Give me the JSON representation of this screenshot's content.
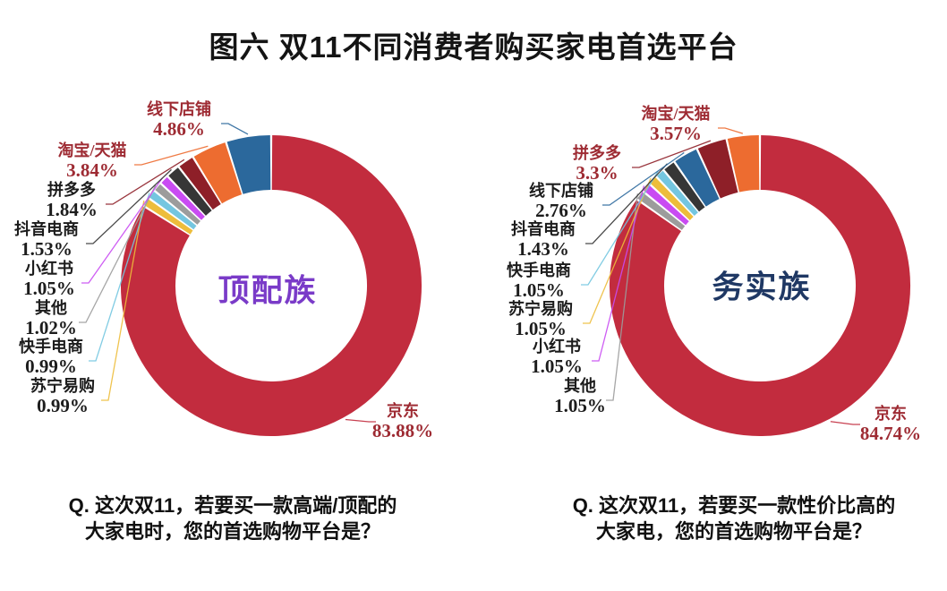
{
  "title": "图六 双11不同消费者购买家电首选平台",
  "chart_data": [
    {
      "type": "pie",
      "subtype": "donut",
      "center_label": "顶配族",
      "center_label_color": "#7A3BC8",
      "question": [
        "Q. 这次双11，若要买一款高端/顶配的",
        "大家电时，您的首选购物平台是？"
      ],
      "unit": "%",
      "legend_position": "outside-callout",
      "slices": [
        {
          "name": "京东",
          "value": 83.88,
          "display": "83.88%",
          "color": "#C22C3E",
          "label_color": "#9E2B33"
        },
        {
          "name": "苏宁易购",
          "value": 0.99,
          "display": "0.99%",
          "color": "#EDBD3B",
          "label_color": "#1C1C1C"
        },
        {
          "name": "快手电商",
          "value": 0.99,
          "display": "0.99%",
          "color": "#74C6E0",
          "label_color": "#1C1C1C"
        },
        {
          "name": "其他",
          "value": 1.02,
          "display": "1.02%",
          "color": "#9C9C9C",
          "label_color": "#1C1C1C"
        },
        {
          "name": "小红书",
          "value": 1.05,
          "display": "1.05%",
          "color": "#C94BF2",
          "label_color": "#1C1C1C"
        },
        {
          "name": "抖音电商",
          "value": 1.53,
          "display": "1.53%",
          "color": "#363636",
          "label_color": "#1C1C1C"
        },
        {
          "name": "拼多多",
          "value": 1.84,
          "display": "1.84%",
          "color": "#8E1F28",
          "label_color": "#1C1C1C"
        },
        {
          "name": "淘宝/天猫",
          "value": 3.84,
          "display": "3.84%",
          "color": "#ED6C30",
          "label_color": "#9E2B33"
        },
        {
          "name": "线下店铺",
          "value": 4.86,
          "display": "4.86%",
          "color": "#2B689C",
          "label_color": "#9E2B33"
        }
      ]
    },
    {
      "type": "pie",
      "subtype": "donut",
      "center_label": "务实族",
      "center_label_color": "#1F3864",
      "question": [
        "Q. 这次双11，若要买一款性价比高的",
        "大家电，您的首选购物平台是？"
      ],
      "unit": "%",
      "legend_position": "outside-callout",
      "slices": [
        {
          "name": "京东",
          "value": 84.74,
          "display": "84.74%",
          "color": "#C22C3E",
          "label_color": "#9E2B33"
        },
        {
          "name": "其他",
          "value": 1.05,
          "display": "1.05%",
          "color": "#9C9C9C",
          "label_color": "#1C1C1C"
        },
        {
          "name": "小红书",
          "value": 1.05,
          "display": "1.05%",
          "color": "#C94BF2",
          "label_color": "#1C1C1C"
        },
        {
          "name": "苏宁易购",
          "value": 1.05,
          "display": "1.05%",
          "color": "#EDBD3B",
          "label_color": "#1C1C1C"
        },
        {
          "name": "快手电商",
          "value": 1.05,
          "display": "1.05%",
          "color": "#74C6E0",
          "label_color": "#1C1C1C"
        },
        {
          "name": "抖音电商",
          "value": 1.43,
          "display": "1.43%",
          "color": "#363636",
          "label_color": "#1C1C1C"
        },
        {
          "name": "线下店铺",
          "value": 2.76,
          "display": "2.76%",
          "color": "#2B689C",
          "label_color": "#1C1C1C"
        },
        {
          "name": "拼多多",
          "value": 3.3,
          "display": "3.3%",
          "color": "#8E1F28",
          "label_color": "#9E2B33"
        },
        {
          "name": "淘宝/天猫",
          "value": 3.57,
          "display": "3.57%",
          "color": "#ED6C30",
          "label_color": "#9E2B33"
        }
      ]
    }
  ]
}
